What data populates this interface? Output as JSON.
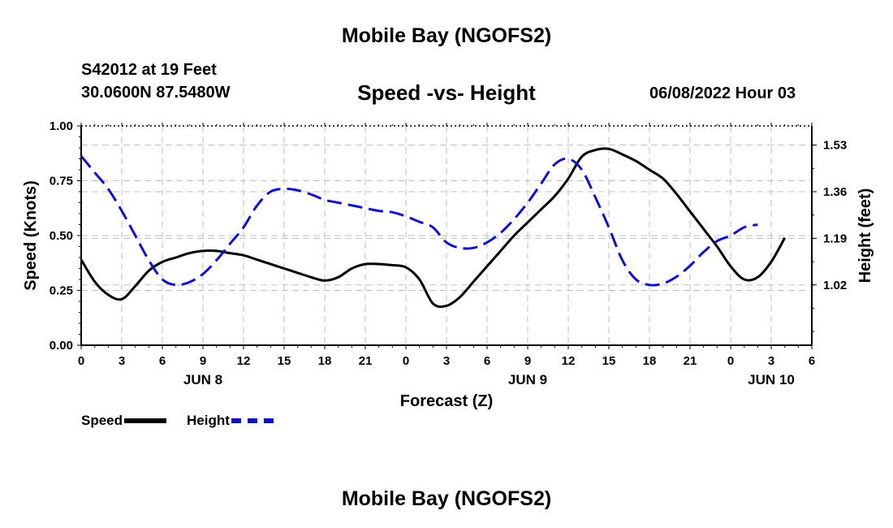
{
  "header": {
    "title_top": "Mobile Bay (NGOFS2)",
    "station": "S42012 at 19 Feet",
    "coords": "30.0600N  87.5480W",
    "plot_title": "Speed -vs- Height",
    "timestamp": "06/08/2022 Hour 03",
    "title_bottom": "Mobile Bay (NGOFS2)"
  },
  "legend": {
    "speed_label": "Speed",
    "height_label": "Height"
  },
  "colors": {
    "speed": "#000000",
    "height": "#1010cc",
    "grid": "#bfbfbf"
  },
  "chart_data": {
    "type": "line",
    "xlabel": "Forecast (Z)",
    "ylabel_left": "Speed (Knots)",
    "ylabel_right": "Height (feet)",
    "x_ticks": [
      "0",
      "3",
      "6",
      "9",
      "12",
      "15",
      "18",
      "21",
      "0",
      "3",
      "6",
      "9",
      "12",
      "15",
      "18",
      "21",
      "0",
      "3",
      "6"
    ],
    "day_labels": [
      {
        "label": "JUN 8",
        "hour": 9
      },
      {
        "label": "JUN 9",
        "hour": 33
      },
      {
        "label": "JUN 10",
        "hour": 57
      }
    ],
    "xlim": [
      0,
      54
    ],
    "ylim_left": [
      0,
      1.0
    ],
    "y_ticks_left": [
      "0.00",
      "0.25",
      "0.50",
      "0.75",
      "1.00"
    ],
    "ylim_right": [
      0.8,
      1.6
    ],
    "y_ticks_right": [
      1.02,
      1.19,
      1.36,
      1.53
    ],
    "grid": true,
    "legend_position": "bottom-left",
    "series": [
      {
        "name": "Speed",
        "axis": "left",
        "style": "solid",
        "points": [
          [
            0,
            0.39
          ],
          [
            1,
            0.29
          ],
          [
            2,
            0.23
          ],
          [
            3,
            0.21
          ],
          [
            4,
            0.27
          ],
          [
            5,
            0.34
          ],
          [
            6,
            0.38
          ],
          [
            7,
            0.4
          ],
          [
            8,
            0.42
          ],
          [
            9,
            0.43
          ],
          [
            10,
            0.43
          ],
          [
            11,
            0.42
          ],
          [
            12,
            0.41
          ],
          [
            13,
            0.39
          ],
          [
            14,
            0.37
          ],
          [
            15,
            0.35
          ],
          [
            16,
            0.33
          ],
          [
            17,
            0.31
          ],
          [
            18,
            0.295
          ],
          [
            19,
            0.31
          ],
          [
            20,
            0.35
          ],
          [
            21,
            0.37
          ],
          [
            22,
            0.37
          ],
          [
            23,
            0.365
          ],
          [
            24,
            0.355
          ],
          [
            25,
            0.3
          ],
          [
            26,
            0.19
          ],
          [
            27,
            0.18
          ],
          [
            28,
            0.22
          ],
          [
            29,
            0.29
          ],
          [
            30,
            0.36
          ],
          [
            31,
            0.43
          ],
          [
            32,
            0.5
          ],
          [
            33,
            0.56
          ],
          [
            34,
            0.62
          ],
          [
            35,
            0.68
          ],
          [
            36,
            0.76
          ],
          [
            37,
            0.86
          ],
          [
            38,
            0.89
          ],
          [
            39,
            0.895
          ],
          [
            40,
            0.87
          ],
          [
            41,
            0.84
          ],
          [
            42,
            0.8
          ],
          [
            43,
            0.76
          ],
          [
            44,
            0.69
          ],
          [
            45,
            0.61
          ],
          [
            46,
            0.53
          ],
          [
            47,
            0.45
          ],
          [
            48,
            0.36
          ],
          [
            49,
            0.3
          ],
          [
            50,
            0.31
          ],
          [
            51,
            0.38
          ],
          [
            52,
            0.49
          ]
        ]
      },
      {
        "name": "Height",
        "axis": "right",
        "style": "dashed",
        "points": [
          [
            0,
            1.49
          ],
          [
            1,
            1.43
          ],
          [
            2,
            1.37
          ],
          [
            3,
            1.29
          ],
          [
            4,
            1.2
          ],
          [
            5,
            1.11
          ],
          [
            6,
            1.04
          ],
          [
            7,
            1.02
          ],
          [
            8,
            1.03
          ],
          [
            9,
            1.06
          ],
          [
            10,
            1.11
          ],
          [
            11,
            1.17
          ],
          [
            12,
            1.23
          ],
          [
            13,
            1.31
          ],
          [
            14,
            1.36
          ],
          [
            15,
            1.37
          ],
          [
            16,
            1.365
          ],
          [
            17,
            1.35
          ],
          [
            18,
            1.33
          ],
          [
            19,
            1.32
          ],
          [
            20,
            1.31
          ],
          [
            21,
            1.3
          ],
          [
            22,
            1.29
          ],
          [
            23,
            1.285
          ],
          [
            24,
            1.27
          ],
          [
            25,
            1.25
          ],
          [
            26,
            1.23
          ],
          [
            27,
            1.175
          ],
          [
            28,
            1.155
          ],
          [
            29,
            1.155
          ],
          [
            30,
            1.175
          ],
          [
            31,
            1.21
          ],
          [
            32,
            1.26
          ],
          [
            33,
            1.32
          ],
          [
            34,
            1.39
          ],
          [
            35,
            1.46
          ],
          [
            36,
            1.48
          ],
          [
            37,
            1.44
          ],
          [
            38,
            1.34
          ],
          [
            39,
            1.23
          ],
          [
            40,
            1.11
          ],
          [
            41,
            1.04
          ],
          [
            42,
            1.02
          ],
          [
            43,
            1.025
          ],
          [
            44,
            1.05
          ],
          [
            45,
            1.09
          ],
          [
            46,
            1.14
          ],
          [
            47,
            1.18
          ],
          [
            48,
            1.2
          ],
          [
            49,
            1.23
          ],
          [
            50,
            1.24
          ]
        ]
      }
    ]
  }
}
